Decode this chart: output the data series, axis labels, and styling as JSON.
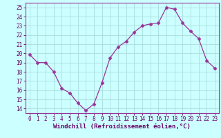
{
  "x": [
    0,
    1,
    2,
    3,
    4,
    5,
    6,
    7,
    8,
    9,
    10,
    11,
    12,
    13,
    14,
    15,
    16,
    17,
    18,
    19,
    20,
    21,
    22,
    23
  ],
  "y": [
    19.9,
    19.0,
    19.0,
    18.0,
    16.2,
    15.7,
    14.6,
    13.8,
    14.5,
    16.8,
    19.5,
    20.7,
    21.3,
    22.3,
    23.0,
    23.2,
    23.3,
    25.0,
    24.8,
    23.3,
    22.4,
    21.6,
    19.2,
    18.4
  ],
  "line_color": "#993399",
  "marker": "D",
  "marker_size": 2.5,
  "bg_color": "#ccffff",
  "grid_color": "#aadddd",
  "xlabel": "Windchill (Refroidissement éolien,°C)",
  "ylim": [
    13.5,
    25.5
  ],
  "xlim": [
    -0.5,
    23.5
  ],
  "yticks": [
    14,
    15,
    16,
    17,
    18,
    19,
    20,
    21,
    22,
    23,
    24,
    25
  ],
  "xticks": [
    0,
    1,
    2,
    3,
    4,
    5,
    6,
    7,
    8,
    9,
    10,
    11,
    12,
    13,
    14,
    15,
    16,
    17,
    18,
    19,
    20,
    21,
    22,
    23
  ],
  "tick_fontsize": 5.5,
  "xlabel_fontsize": 6.5,
  "spine_color": "#993399",
  "label_color": "#660066"
}
